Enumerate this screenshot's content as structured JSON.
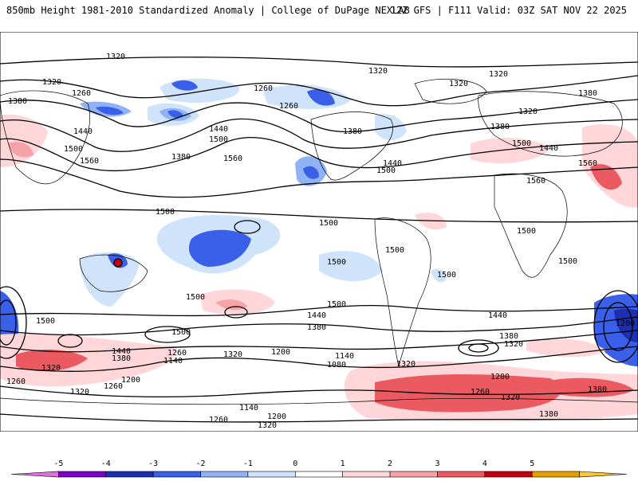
{
  "header": {
    "left": "850mb Height 1981-2010 Standardized Anomaly | College of DuPage NEXLAB",
    "right": "12Z GFS | F111 Valid: 03Z SAT NOV 22 2025"
  },
  "contour_labels": [
    {
      "id": "c1",
      "text": "1320"
    },
    {
      "id": "c2",
      "text": "1320"
    },
    {
      "id": "c3",
      "text": "1320"
    },
    {
      "id": "c4",
      "text": "1320"
    },
    {
      "id": "c5",
      "text": "1380"
    },
    {
      "id": "c6",
      "text": "1260"
    },
    {
      "id": "c7",
      "text": "1260"
    },
    {
      "id": "c8",
      "text": "1260"
    },
    {
      "id": "c9",
      "text": "1320"
    },
    {
      "id": "c10",
      "text": "1440"
    },
    {
      "id": "c11",
      "text": "1500"
    },
    {
      "id": "c12",
      "text": "1380"
    },
    {
      "id": "c13",
      "text": "1440"
    },
    {
      "id": "c14",
      "text": "1500"
    },
    {
      "id": "c15",
      "text": "1560"
    },
    {
      "id": "c16",
      "text": "1380"
    },
    {
      "id": "c17",
      "text": "1560"
    },
    {
      "id": "c18",
      "text": "1500"
    },
    {
      "id": "c19",
      "text": "1440"
    },
    {
      "id": "c20",
      "text": "1380"
    },
    {
      "id": "c21",
      "text": "1320"
    },
    {
      "id": "c22",
      "text": "1380"
    },
    {
      "id": "c23",
      "text": "1500"
    },
    {
      "id": "c24",
      "text": "1440"
    },
    {
      "id": "c25",
      "text": "1560"
    },
    {
      "id": "c26",
      "text": "1560"
    },
    {
      "id": "c27",
      "text": "1500"
    },
    {
      "id": "c28",
      "text": "1500"
    },
    {
      "id": "c29",
      "text": "1500"
    },
    {
      "id": "c30",
      "text": "1500"
    },
    {
      "id": "c31",
      "text": "1500"
    },
    {
      "id": "c32",
      "text": "1500"
    },
    {
      "id": "c33",
      "text": "1500"
    },
    {
      "id": "c34",
      "text": "1500"
    },
    {
      "id": "c35",
      "text": "1500"
    },
    {
      "id": "c36",
      "text": "1500"
    },
    {
      "id": "c37",
      "text": "1440"
    },
    {
      "id": "c38",
      "text": "1380"
    },
    {
      "id": "c39",
      "text": "1500"
    },
    {
      "id": "c40",
      "text": "1440"
    },
    {
      "id": "c41",
      "text": "1380"
    },
    {
      "id": "c42",
      "text": "1320"
    },
    {
      "id": "c43",
      "text": "1200"
    },
    {
      "id": "c44",
      "text": "1440"
    },
    {
      "id": "c45",
      "text": "1380"
    },
    {
      "id": "c46",
      "text": "1260"
    },
    {
      "id": "c47",
      "text": "1140"
    },
    {
      "id": "c48",
      "text": "1320"
    },
    {
      "id": "c49",
      "text": "1200"
    },
    {
      "id": "c50",
      "text": "1140"
    },
    {
      "id": "c51",
      "text": "1080"
    },
    {
      "id": "c52",
      "text": "1320"
    },
    {
      "id": "c53",
      "text": "1320"
    },
    {
      "id": "c54",
      "text": "1260"
    },
    {
      "id": "c55",
      "text": "1200"
    },
    {
      "id": "c56",
      "text": "1260"
    },
    {
      "id": "c57",
      "text": "1320"
    },
    {
      "id": "c58",
      "text": "1140"
    },
    {
      "id": "c59",
      "text": "1200"
    },
    {
      "id": "c60",
      "text": "1260"
    },
    {
      "id": "c61",
      "text": "1320"
    },
    {
      "id": "c62",
      "text": "1200"
    },
    {
      "id": "c63",
      "text": "1260"
    },
    {
      "id": "c64",
      "text": "1320"
    },
    {
      "id": "c65",
      "text": "1380"
    },
    {
      "id": "c66",
      "text": "1380"
    }
  ],
  "colorbar": {
    "ticks": [
      "-5",
      "-4",
      "-3",
      "-2",
      "-1",
      "0",
      "1",
      "2",
      "3",
      "4",
      "5"
    ],
    "colors": [
      "#e070e0",
      "#7a00c8",
      "#1b2fb0",
      "#3a5fe8",
      "#8fb3f5",
      "#cfe3fb",
      "#ffffff",
      "#ffd6d9",
      "#f6a3a8",
      "#ea5a60",
      "#c40010",
      "#e4a000",
      "#ffc830"
    ]
  }
}
